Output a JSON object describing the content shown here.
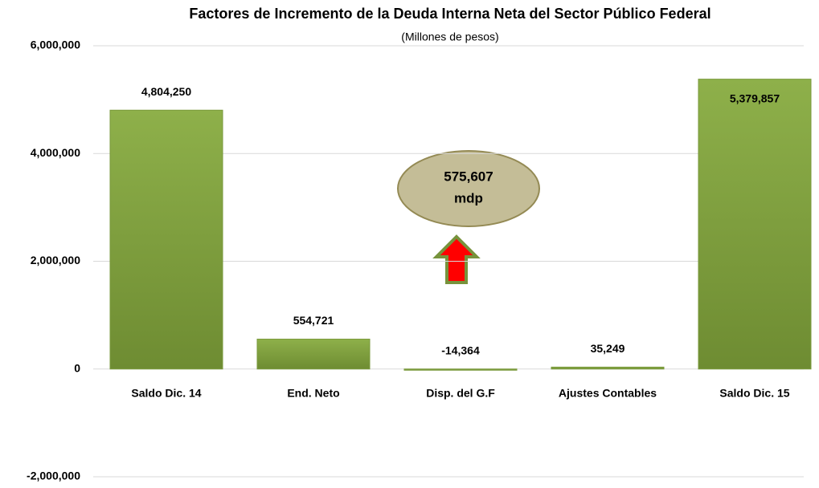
{
  "chart_data": {
    "type": "bar",
    "title": "Factores de Incremento de la Deuda Interna Neta del Sector Público Federal",
    "subtitle": "(Millones de pesos)",
    "categories": [
      "Saldo Dic. 14",
      "End. Neto",
      "Disp. del G.F",
      "Ajustes Contables",
      "Saldo Dic. 15"
    ],
    "values": [
      4804250,
      554721,
      -14364,
      35249,
      5379857
    ],
    "value_labels": [
      "4,804,250",
      "554,721",
      "-14,364",
      "35,249",
      "5,379,857"
    ],
    "color": "#7a9a3c",
    "ylim": [
      -2000000,
      6000000
    ],
    "yticks": [
      {
        "value": -2000000,
        "label": "-2,000,000"
      },
      0,
      {
        "value": 2000000,
        "label": "2,000,000"
      },
      {
        "value": 4000000,
        "label": "4,000,000"
      },
      {
        "value": 6000000,
        "label": "6,000,000"
      }
    ],
    "grid": true,
    "annotation": [
      "575,607",
      "mdp"
    ]
  }
}
